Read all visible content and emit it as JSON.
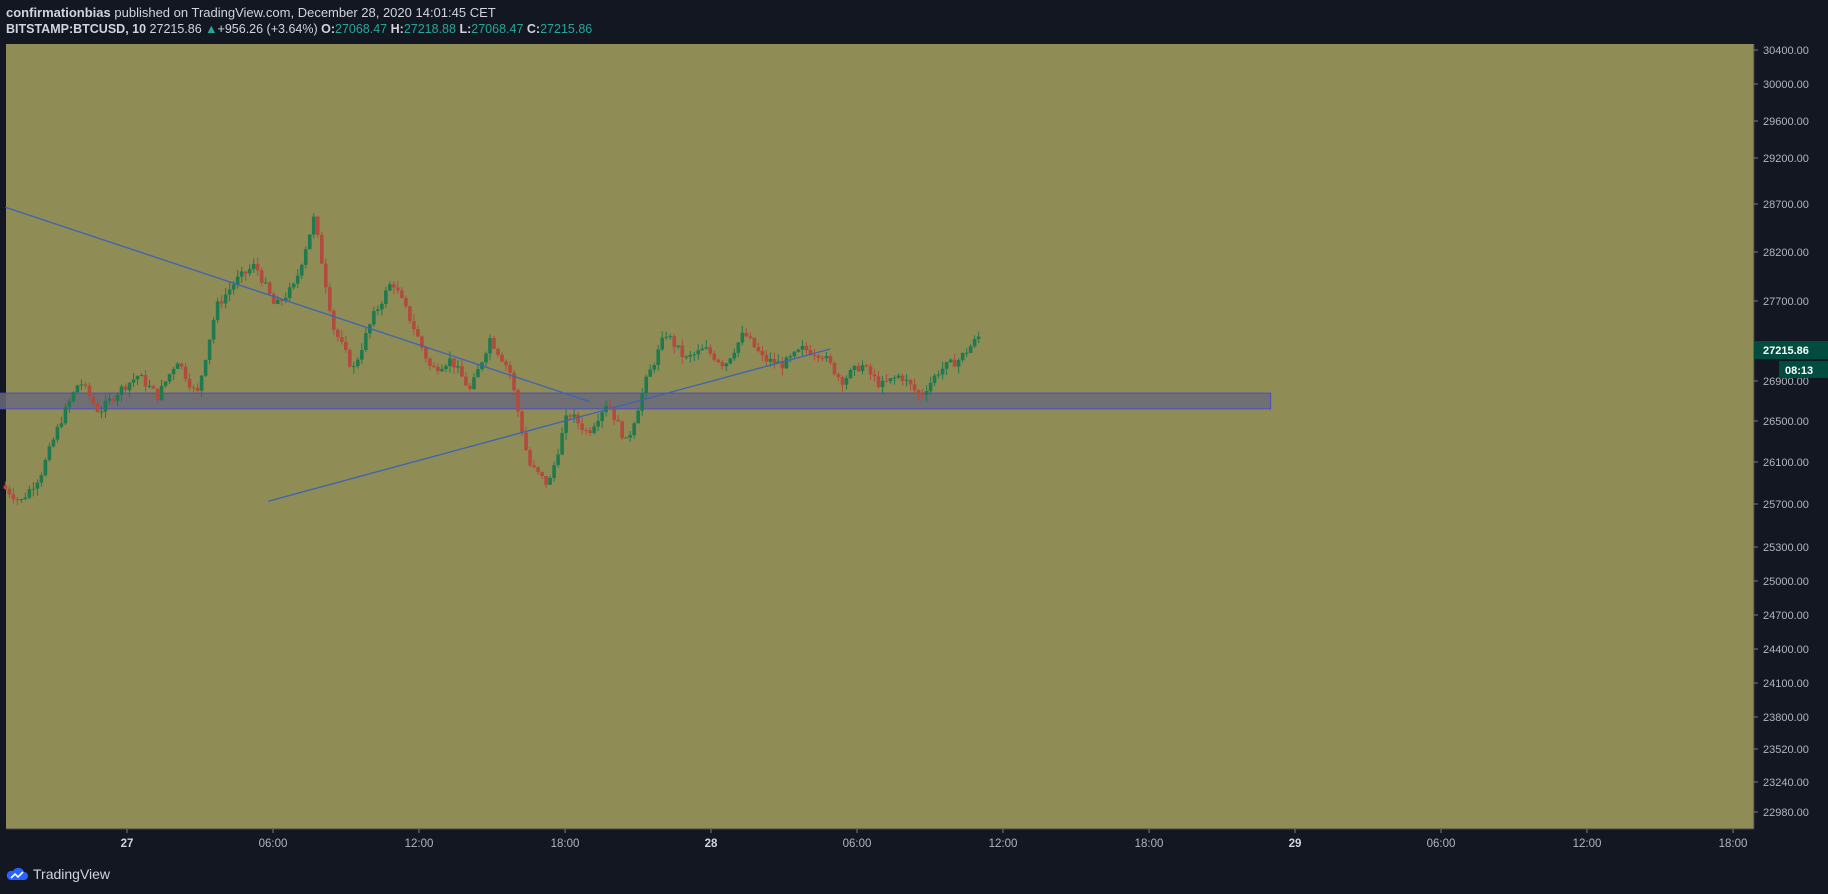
{
  "header": {
    "author": "confirmationbias",
    "published_text": "published on TradingView.com, December 28, 2020 14:01:45 CET",
    "symbol": "BITSTAMP:BTCUSD, 10",
    "last_price": "27215.86",
    "change_arrow": "▲",
    "change": "+956.26 (+3.64%)",
    "o_label": "O:",
    "o_value": "27068.47",
    "h_label": "H:",
    "h_value": "27218.88",
    "l_label": "L:",
    "l_value": "27068.47",
    "c_label": "C:",
    "c_value": "27215.86"
  },
  "footer": {
    "brand": "TradingView"
  },
  "colors": {
    "background": "#8f8c55",
    "up": "#1f7a4f",
    "down": "#b24a3e",
    "trendline": "#3d63b5",
    "zone_fill": "#6a6a7a",
    "zone_border": "#4b4dc9",
    "price_badge": "#004d40"
  },
  "chart_data": {
    "type": "candlestick",
    "y_ticks": [
      "30400.00",
      "30000.00",
      "29600.00",
      "29200.00",
      "28700.00",
      "28200.00",
      "27700.00",
      "26900.00",
      "26500.00",
      "26100.00",
      "25700.00",
      "25300.00",
      "25000.00",
      "24700.00",
      "24400.00",
      "24100.00",
      "23800.00",
      "23520.00",
      "23240.00",
      "22980.00"
    ],
    "x_ticks": [
      {
        "label": "27",
        "bold": true
      },
      {
        "label": "06:00",
        "bold": false
      },
      {
        "label": "12:00",
        "bold": false
      },
      {
        "label": "18:00",
        "bold": false
      },
      {
        "label": "28",
        "bold": true
      },
      {
        "label": "06:00",
        "bold": false
      },
      {
        "label": "12:00",
        "bold": false
      },
      {
        "label": "18:00",
        "bold": false
      },
      {
        "label": "29",
        "bold": true
      },
      {
        "label": "06:00",
        "bold": false
      },
      {
        "label": "12:00",
        "bold": false
      },
      {
        "label": "18:00",
        "bold": false
      }
    ],
    "last_price_label": "27215.86",
    "countdown_label": "08:13",
    "price_path": [
      25800,
      25650,
      25900,
      26400,
      26800,
      26500,
      26700,
      26850,
      26650,
      27000,
      26650,
      27500,
      27750,
      27900,
      27500,
      27700,
      28350,
      27300,
      26900,
      27400,
      27750,
      27350,
      26900,
      27000,
      26700,
      27200,
      26900,
      26000,
      25800,
      26500,
      26300,
      26600,
      26200,
      26800,
      27250,
      27000,
      27100,
      26950,
      27250,
      27000,
      26950,
      27100,
      27050,
      26800,
      26950,
      26750,
      26850,
      26650,
      26900,
      27000,
      27215
    ],
    "trendlines": [
      {
        "from": {
          "t": -0.2083,
          "p": 28450
        },
        "to": {
          "t": 0.7917,
          "p": 26600
        }
      },
      {
        "from": {
          "t": 0.2417,
          "p": 25650
        },
        "to": {
          "t": 1.2042,
          "p": 27100
        }
      }
    ],
    "zone": {
      "t0": -0.3333,
      "t1": 1.9583,
      "p_low": 26530,
      "p_high": 26680
    }
  }
}
